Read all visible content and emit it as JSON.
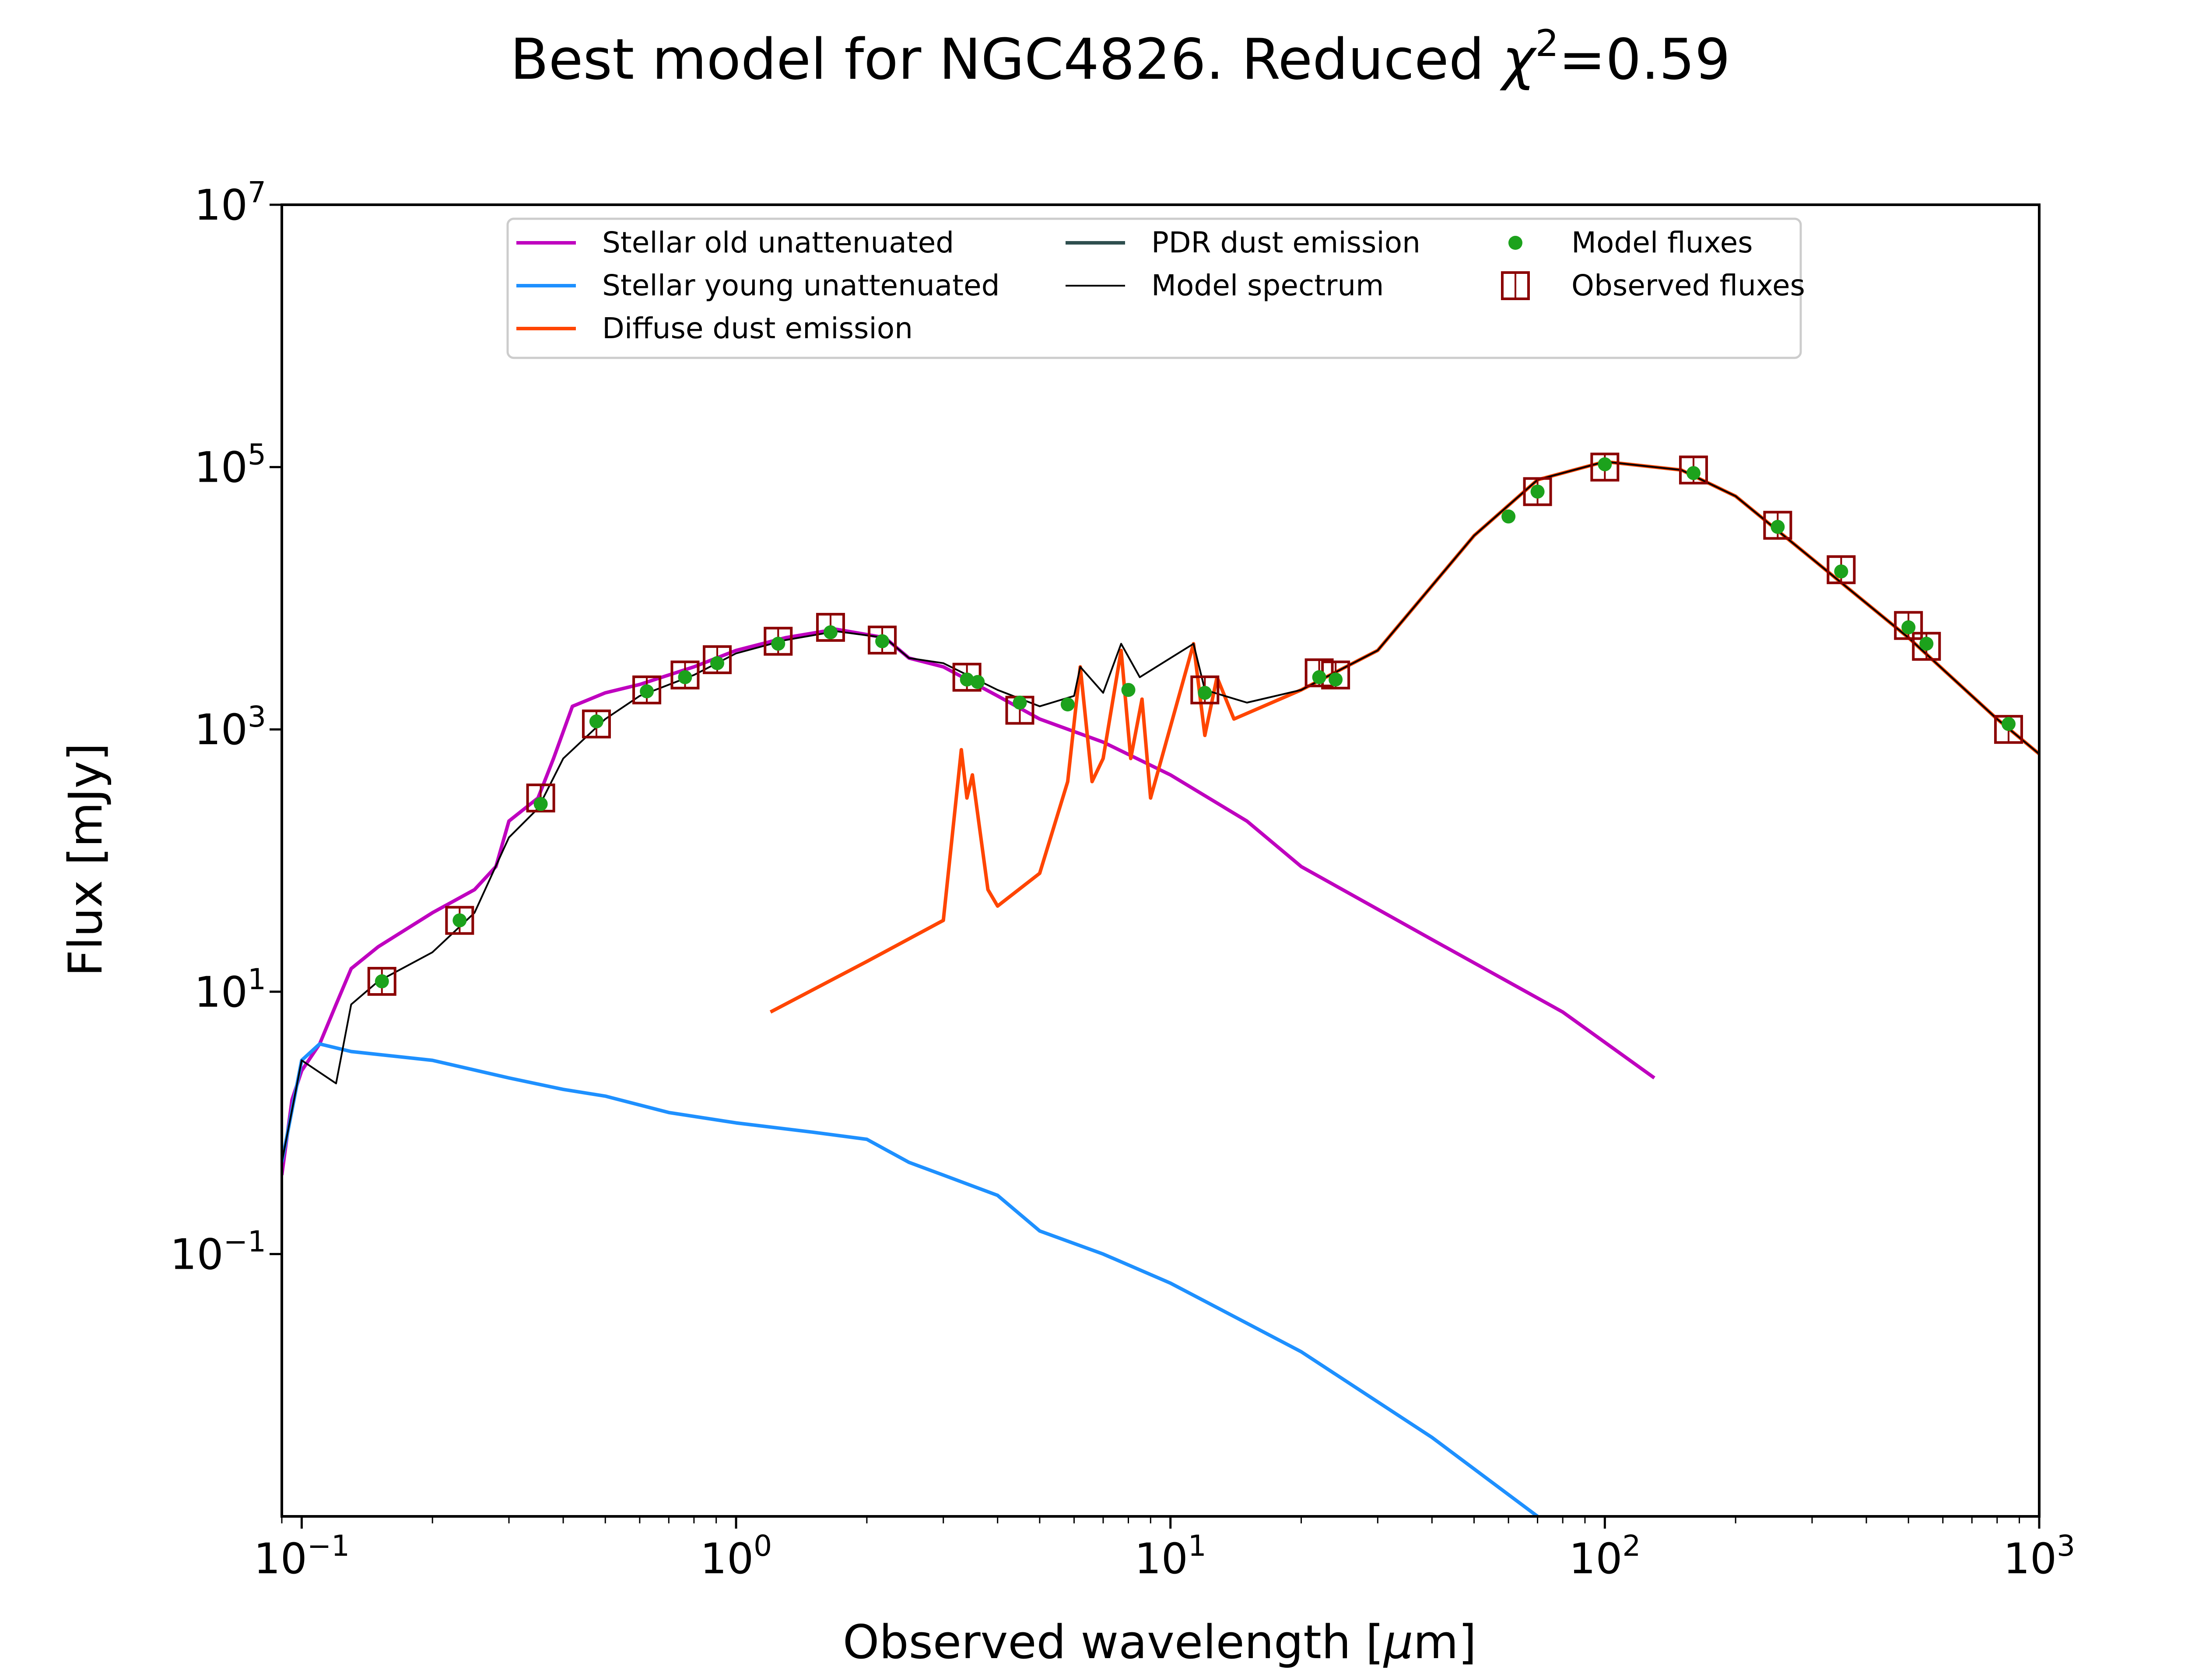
{
  "chart_data": {
    "type": "line",
    "title": "Best model for NGC4826. Reduced χ²=0.59",
    "title_parts": {
      "prefix": "Best model for NGC4826. Reduced ",
      "symbol": "χ",
      "superscript": "2",
      "suffix": "=0.59"
    },
    "xlabel": "Observed wavelength [μm]",
    "xlabel_parts": {
      "prefix": "Observed wavelength [",
      "unit": "μ",
      "suffix": "m]"
    },
    "ylabel": "Flux [mJy]",
    "xscale": "log",
    "yscale": "log",
    "xlim": [
      0.09,
      1000
    ],
    "ylim": [
      0.001,
      10000000
    ],
    "x_ticks": [
      {
        "base": "10",
        "exp": "−1",
        "value": 0.1
      },
      {
        "base": "10",
        "exp": "0",
        "value": 1
      },
      {
        "base": "10",
        "exp": "1",
        "value": 10
      },
      {
        "base": "10",
        "exp": "2",
        "value": 100
      },
      {
        "base": "10",
        "exp": "3",
        "value": 1000
      }
    ],
    "y_ticks": [
      {
        "base": "10",
        "exp": "−1",
        "value": 0.1
      },
      {
        "base": "10",
        "exp": "1",
        "value": 10
      },
      {
        "base": "10",
        "exp": "3",
        "value": 1000
      },
      {
        "base": "10",
        "exp": "5",
        "value": 100000
      },
      {
        "base": "10",
        "exp": "7",
        "value": 10000000
      }
    ],
    "legend_position": "top-center",
    "legend": [
      {
        "label": "Stellar old unattenuated",
        "kind": "line",
        "color": "#bf00bf"
      },
      {
        "label": "Stellar young unattenuated",
        "kind": "line",
        "color": "#1e90ff"
      },
      {
        "label": "Diffuse dust emission",
        "kind": "line",
        "color": "#ff4500"
      },
      {
        "label": "PDR dust emission",
        "kind": "line",
        "color": "#2f4f4f"
      },
      {
        "label": "Model spectrum",
        "kind": "thin-line",
        "color": "#000000"
      },
      {
        "label": "Model fluxes",
        "kind": "dot",
        "color": "#1ca21c"
      },
      {
        "label": "Observed fluxes",
        "kind": "square",
        "color": "#8b0000"
      }
    ],
    "series": [
      {
        "name": "Stellar old unattenuated",
        "color": "#bf00bf",
        "points": [
          [
            0.09,
            0.4
          ],
          [
            0.095,
            1.5
          ],
          [
            0.1,
            2.5
          ],
          [
            0.11,
            4
          ],
          [
            0.12,
            8
          ],
          [
            0.13,
            15
          ],
          [
            0.15,
            22
          ],
          [
            0.2,
            40
          ],
          [
            0.25,
            60
          ],
          [
            0.28,
            90
          ],
          [
            0.3,
            200
          ],
          [
            0.35,
            300
          ],
          [
            0.38,
            600
          ],
          [
            0.42,
            1500
          ],
          [
            0.5,
            1900
          ],
          [
            0.6,
            2200
          ],
          [
            0.8,
            3000
          ],
          [
            1.0,
            4000
          ],
          [
            1.3,
            5000
          ],
          [
            1.7,
            5800
          ],
          [
            2.2,
            5000
          ],
          [
            2.5,
            3500
          ],
          [
            3.0,
            3000
          ],
          [
            4.0,
            1800
          ],
          [
            5.0,
            1200
          ],
          [
            7.0,
            800
          ],
          [
            10.0,
            450
          ],
          [
            15.0,
            200
          ],
          [
            20.0,
            90
          ],
          [
            40.0,
            25
          ],
          [
            80.0,
            7
          ],
          [
            130.0,
            2.2
          ]
        ]
      },
      {
        "name": "Stellar young unattenuated",
        "color": "#1e90ff",
        "points": [
          [
            0.09,
            0.5
          ],
          [
            0.1,
            3
          ],
          [
            0.11,
            4
          ],
          [
            0.13,
            3.5
          ],
          [
            0.2,
            3
          ],
          [
            0.3,
            2.2
          ],
          [
            0.4,
            1.8
          ],
          [
            0.5,
            1.6
          ],
          [
            0.7,
            1.2
          ],
          [
            1.0,
            1.0
          ],
          [
            1.5,
            0.85
          ],
          [
            2.0,
            0.75
          ],
          [
            2.5,
            0.5
          ],
          [
            3.0,
            0.4
          ],
          [
            4.0,
            0.28
          ],
          [
            5.0,
            0.15
          ],
          [
            7.0,
            0.1
          ],
          [
            10.0,
            0.06
          ],
          [
            20.0,
            0.018
          ],
          [
            40.0,
            0.004
          ],
          [
            70.0,
            0.001
          ]
        ]
      },
      {
        "name": "Diffuse dust emission",
        "color": "#ff4500",
        "points": [
          [
            1.2,
            7
          ],
          [
            2.0,
            17
          ],
          [
            3.0,
            35
          ],
          [
            3.3,
            700
          ],
          [
            3.4,
            300
          ],
          [
            3.5,
            450
          ],
          [
            3.8,
            60
          ],
          [
            4.0,
            45
          ],
          [
            5.0,
            80
          ],
          [
            5.8,
            400
          ],
          [
            6.2,
            3000
          ],
          [
            6.6,
            400
          ],
          [
            7.0,
            600
          ],
          [
            7.7,
            4000
          ],
          [
            8.1,
            600
          ],
          [
            8.6,
            1700
          ],
          [
            9.0,
            300
          ],
          [
            11.3,
            4500
          ],
          [
            12.0,
            900
          ],
          [
            12.8,
            2500
          ],
          [
            14.0,
            1200
          ],
          [
            20.0,
            2000
          ],
          [
            30.0,
            4000
          ],
          [
            50.0,
            30000
          ],
          [
            70.0,
            80000
          ],
          [
            100.0,
            110000
          ],
          [
            150.0,
            95000
          ],
          [
            200.0,
            60000
          ],
          [
            300.0,
            20000
          ],
          [
            500.0,
            5000
          ],
          [
            800.0,
            1200
          ],
          [
            1000.0,
            650
          ]
        ]
      },
      {
        "name": "PDR dust emission",
        "color": "#2f4f4f",
        "points": []
      },
      {
        "name": "Model spectrum",
        "color": "#000000",
        "points": [
          [
            0.09,
            0.5
          ],
          [
            0.1,
            3
          ],
          [
            0.12,
            2
          ],
          [
            0.13,
            8
          ],
          [
            0.15,
            12
          ],
          [
            0.2,
            20
          ],
          [
            0.25,
            40
          ],
          [
            0.3,
            150
          ],
          [
            0.35,
            250
          ],
          [
            0.4,
            600
          ],
          [
            0.5,
            1200
          ],
          [
            0.6,
            1800
          ],
          [
            0.8,
            2600
          ],
          [
            1.0,
            3800
          ],
          [
            1.3,
            4800
          ],
          [
            1.7,
            5600
          ],
          [
            2.2,
            5000
          ],
          [
            2.5,
            3500
          ],
          [
            3.0,
            3200
          ],
          [
            4.0,
            2000
          ],
          [
            5.0,
            1500
          ],
          [
            6.0,
            1800
          ],
          [
            6.2,
            3000
          ],
          [
            7.0,
            1900
          ],
          [
            7.7,
            4500
          ],
          [
            8.5,
            2500
          ],
          [
            11.3,
            4500
          ],
          [
            12.0,
            2000
          ],
          [
            15.0,
            1600
          ],
          [
            20.0,
            2000
          ],
          [
            30.0,
            4000
          ],
          [
            50.0,
            30000
          ],
          [
            70.0,
            80000
          ],
          [
            100.0,
            110000
          ],
          [
            150.0,
            95000
          ],
          [
            200.0,
            60000
          ],
          [
            300.0,
            20000
          ],
          [
            500.0,
            5000
          ],
          [
            800.0,
            1200
          ],
          [
            1000.0,
            650
          ]
        ]
      }
    ],
    "model_fluxes": [
      [
        0.153,
        12
      ],
      [
        0.231,
        35
      ],
      [
        0.355,
        270
      ],
      [
        0.477,
        1150
      ],
      [
        0.623,
        1950
      ],
      [
        0.763,
        2500
      ],
      [
        0.905,
        3200
      ],
      [
        1.25,
        4500
      ],
      [
        1.65,
        5500
      ],
      [
        2.17,
        4700
      ],
      [
        3.4,
        2400
      ],
      [
        3.6,
        2300
      ],
      [
        4.5,
        1600
      ],
      [
        5.8,
        1550
      ],
      [
        8.0,
        2000
      ],
      [
        12.0,
        1900
      ],
      [
        22.0,
        2500
      ],
      [
        24.0,
        2400
      ],
      [
        60.0,
        42000
      ],
      [
        70.0,
        65000
      ],
      [
        100.0,
        105000
      ],
      [
        160.0,
        90000
      ],
      [
        250.0,
        35000
      ],
      [
        350.0,
        16000
      ],
      [
        500.0,
        6000
      ],
      [
        550.0,
        4500
      ],
      [
        850.0,
        1100
      ]
    ],
    "observed_fluxes": [
      [
        0.153,
        12
      ],
      [
        0.231,
        35
      ],
      [
        0.355,
        300
      ],
      [
        0.477,
        1100
      ],
      [
        0.623,
        2000
      ],
      [
        0.763,
        2600
      ],
      [
        0.905,
        3400
      ],
      [
        1.25,
        4700
      ],
      [
        1.65,
        6000
      ],
      [
        2.17,
        4800
      ],
      [
        3.4,
        2500
      ],
      [
        4.5,
        1400
      ],
      [
        12.0,
        2000
      ],
      [
        22.0,
        2700
      ],
      [
        24.0,
        2600
      ],
      [
        70.0,
        65000
      ],
      [
        100.0,
        100000
      ],
      [
        160.0,
        95000
      ],
      [
        250.0,
        36000
      ],
      [
        350.0,
        16500
      ],
      [
        500.0,
        6200
      ],
      [
        550.0,
        4300
      ],
      [
        850.0,
        1000
      ]
    ]
  }
}
